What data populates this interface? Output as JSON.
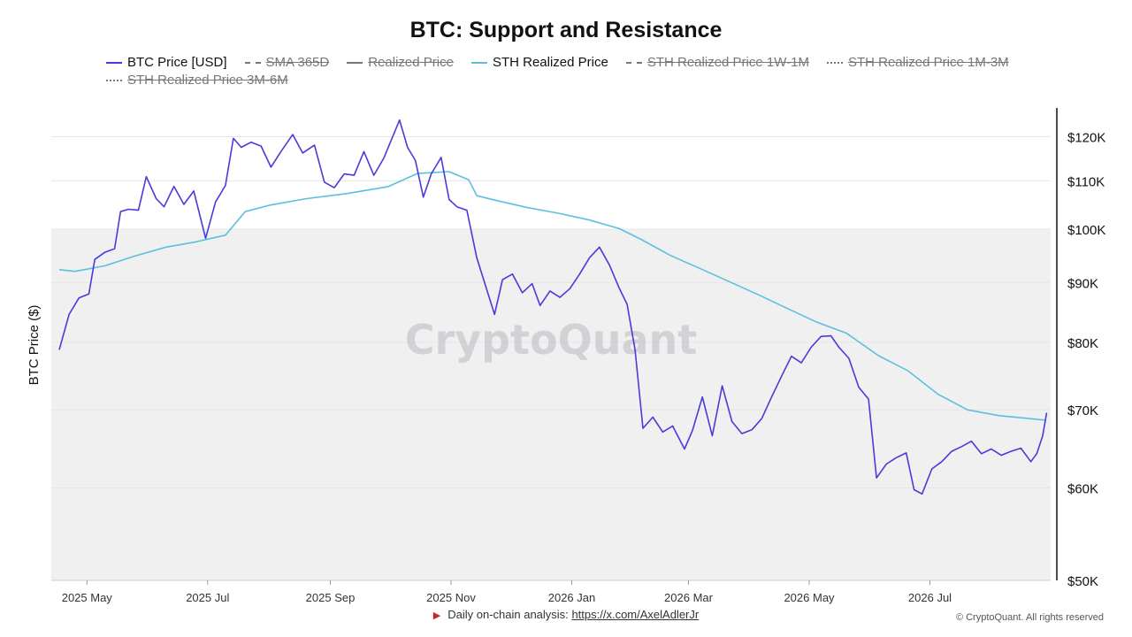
{
  "chart_data": {
    "type": "line",
    "title": "BTC: Support and Resistance",
    "ylabel": "BTC Price ($)",
    "xlabel": "",
    "y_scale": "log",
    "ylim": [
      50000,
      127000
    ],
    "xlim": [
      "2025-04-13",
      "2026-08-31"
    ],
    "grid": true,
    "legend_position": "top",
    "shaded_band": {
      "from": 50000,
      "to": 100000,
      "color": "#f0f0f0"
    },
    "watermark": "CryptoQuant",
    "y_ticks": [
      {
        "value": 50000,
        "label": "$50K"
      },
      {
        "value": 60000,
        "label": "$60K"
      },
      {
        "value": 70000,
        "label": "$70K"
      },
      {
        "value": 80000,
        "label": "$80K"
      },
      {
        "value": 90000,
        "label": "$90K"
      },
      {
        "value": 100000,
        "label": "$100K"
      },
      {
        "value": 110000,
        "label": "$110K"
      },
      {
        "value": 120000,
        "label": "$120K"
      }
    ],
    "x_ticks": [
      {
        "date": "2025-05-01",
        "label": "2025 May"
      },
      {
        "date": "2025-07-01",
        "label": "2025 Jul"
      },
      {
        "date": "2025-09-01",
        "label": "2025 Sep"
      },
      {
        "date": "2025-11-01",
        "label": "2025 Nov"
      },
      {
        "date": "2026-01-01",
        "label": "2026 Jan"
      },
      {
        "date": "2026-03-01",
        "label": "2026 Mar"
      },
      {
        "date": "2026-05-01",
        "label": "2026 May"
      },
      {
        "date": "2026-07-01",
        "label": "2026 Jul"
      }
    ],
    "series": [
      {
        "name": "BTC Price [USD]",
        "color": "#4a3ad9",
        "style": "solid",
        "visible": true,
        "points": [
          [
            "2025-04-17",
            78800
          ],
          [
            "2025-04-22",
            84500
          ],
          [
            "2025-04-27",
            87300
          ],
          [
            "2025-05-02",
            88000
          ],
          [
            "2025-05-05",
            94200
          ],
          [
            "2025-05-10",
            95500
          ],
          [
            "2025-05-15",
            96200
          ],
          [
            "2025-05-18",
            103500
          ],
          [
            "2025-05-22",
            104000
          ],
          [
            "2025-05-27",
            103800
          ],
          [
            "2025-05-31",
            110900
          ],
          [
            "2025-06-05",
            106200
          ],
          [
            "2025-06-09",
            104500
          ],
          [
            "2025-06-14",
            108800
          ],
          [
            "2025-06-19",
            105000
          ],
          [
            "2025-06-24",
            107800
          ],
          [
            "2025-06-30",
            98200
          ],
          [
            "2025-07-05",
            105500
          ],
          [
            "2025-07-10",
            109000
          ],
          [
            "2025-07-14",
            119600
          ],
          [
            "2025-07-18",
            117500
          ],
          [
            "2025-07-23",
            118700
          ],
          [
            "2025-07-28",
            117800
          ],
          [
            "2025-08-02",
            113000
          ],
          [
            "2025-08-07",
            116500
          ],
          [
            "2025-08-13",
            120500
          ],
          [
            "2025-08-18",
            116200
          ],
          [
            "2025-08-24",
            118000
          ],
          [
            "2025-08-29",
            109700
          ],
          [
            "2025-09-03",
            108500
          ],
          [
            "2025-09-08",
            111500
          ],
          [
            "2025-09-13",
            111200
          ],
          [
            "2025-09-18",
            116500
          ],
          [
            "2025-09-23",
            111200
          ],
          [
            "2025-09-28",
            115000
          ],
          [
            "2025-10-06",
            124000
          ],
          [
            "2025-10-10",
            117500
          ],
          [
            "2025-10-14",
            114500
          ],
          [
            "2025-10-18",
            106500
          ],
          [
            "2025-10-22",
            111500
          ],
          [
            "2025-10-27",
            115200
          ],
          [
            "2025-10-31",
            106000
          ],
          [
            "2025-11-04",
            104500
          ],
          [
            "2025-11-09",
            103800
          ],
          [
            "2025-11-14",
            94500
          ],
          [
            "2025-11-19",
            88800
          ],
          [
            "2025-11-23",
            84500
          ],
          [
            "2025-11-27",
            90500
          ],
          [
            "2025-12-02",
            91500
          ],
          [
            "2025-12-07",
            88200
          ],
          [
            "2025-12-12",
            89800
          ],
          [
            "2025-12-16",
            86000
          ],
          [
            "2025-12-21",
            88500
          ],
          [
            "2025-12-26",
            87400
          ],
          [
            "2025-12-31",
            88900
          ],
          [
            "2026-01-05",
            91500
          ],
          [
            "2026-01-10",
            94500
          ],
          [
            "2026-01-15",
            96500
          ],
          [
            "2026-01-20",
            93200
          ],
          [
            "2026-01-25",
            89000
          ],
          [
            "2026-01-29",
            86200
          ],
          [
            "2026-02-02",
            78800
          ],
          [
            "2026-02-06",
            67500
          ],
          [
            "2026-02-11",
            69000
          ],
          [
            "2026-02-16",
            67000
          ],
          [
            "2026-02-21",
            67800
          ],
          [
            "2026-02-27",
            64800
          ],
          [
            "2026-03-03",
            67200
          ],
          [
            "2026-03-08",
            71800
          ],
          [
            "2026-03-13",
            66500
          ],
          [
            "2026-03-18",
            73400
          ],
          [
            "2026-03-23",
            68400
          ],
          [
            "2026-03-28",
            66800
          ],
          [
            "2026-04-02",
            67300
          ],
          [
            "2026-04-07",
            68800
          ],
          [
            "2026-04-12",
            71800
          ],
          [
            "2026-04-17",
            74800
          ],
          [
            "2026-04-22",
            77800
          ],
          [
            "2026-04-27",
            76800
          ],
          [
            "2026-05-02",
            79200
          ],
          [
            "2026-05-07",
            80900
          ],
          [
            "2026-05-12",
            81000
          ],
          [
            "2026-05-16",
            79200
          ],
          [
            "2026-05-21",
            77500
          ],
          [
            "2026-05-26",
            73200
          ],
          [
            "2026-05-31",
            71500
          ],
          [
            "2026-06-04",
            61200
          ],
          [
            "2026-06-09",
            62900
          ],
          [
            "2026-06-14",
            63700
          ],
          [
            "2026-06-19",
            64300
          ],
          [
            "2026-06-23",
            59800
          ],
          [
            "2026-06-27",
            59300
          ],
          [
            "2026-07-02",
            62300
          ],
          [
            "2026-07-07",
            63200
          ],
          [
            "2026-07-12",
            64500
          ],
          [
            "2026-07-17",
            65100
          ],
          [
            "2026-07-22",
            65800
          ],
          [
            "2026-07-27",
            64200
          ],
          [
            "2026-08-01",
            64800
          ],
          [
            "2026-08-06",
            64000
          ],
          [
            "2026-08-11",
            64500
          ],
          [
            "2026-08-16",
            64900
          ],
          [
            "2026-08-21",
            63200
          ],
          [
            "2026-08-24",
            64200
          ],
          [
            "2026-08-27",
            66500
          ],
          [
            "2026-08-29",
            69600
          ]
        ]
      },
      {
        "name": "SMA 365D",
        "color": "#777777",
        "style": "dashed",
        "visible": false,
        "points": []
      },
      {
        "name": "Realized Price",
        "color": "#777777",
        "style": "solid",
        "visible": false,
        "points": []
      },
      {
        "name": "STH Realized Price",
        "color": "#5bc0de",
        "style": "solid",
        "visible": true,
        "points": [
          [
            "2025-04-17",
            92300
          ],
          [
            "2025-04-25",
            92000
          ],
          [
            "2025-05-10",
            93000
          ],
          [
            "2025-05-25",
            94800
          ],
          [
            "2025-06-10",
            96500
          ],
          [
            "2025-06-25",
            97500
          ],
          [
            "2025-07-10",
            98800
          ],
          [
            "2025-07-20",
            103500
          ],
          [
            "2025-08-01",
            104800
          ],
          [
            "2025-08-20",
            106200
          ],
          [
            "2025-09-10",
            107300
          ],
          [
            "2025-09-30",
            108700
          ],
          [
            "2025-10-15",
            111600
          ],
          [
            "2025-10-31",
            112000
          ],
          [
            "2025-11-10",
            110200
          ],
          [
            "2025-11-14",
            106800
          ],
          [
            "2025-11-25",
            105700
          ],
          [
            "2025-12-10",
            104300
          ],
          [
            "2025-12-25",
            103200
          ],
          [
            "2026-01-10",
            101800
          ],
          [
            "2026-01-25",
            100100
          ],
          [
            "2026-02-05",
            98000
          ],
          [
            "2026-02-20",
            94900
          ],
          [
            "2026-03-05",
            92800
          ],
          [
            "2026-03-20",
            90400
          ],
          [
            "2026-04-05",
            87900
          ],
          [
            "2026-04-20",
            85500
          ],
          [
            "2026-05-05",
            83200
          ],
          [
            "2026-05-20",
            81400
          ],
          [
            "2026-06-05",
            77900
          ],
          [
            "2026-06-20",
            75600
          ],
          [
            "2026-07-05",
            72200
          ],
          [
            "2026-07-20",
            70000
          ],
          [
            "2026-08-05",
            69200
          ],
          [
            "2026-08-28",
            68600
          ]
        ]
      },
      {
        "name": "STH Realized Price 1W-1M",
        "color": "#777777",
        "style": "dashed",
        "visible": false,
        "points": []
      },
      {
        "name": "STH Realized Price 1M-3M",
        "color": "#777777",
        "style": "dotted",
        "visible": false,
        "points": []
      },
      {
        "name": "STH Realized Price 3M-6M",
        "color": "#777777",
        "style": "dotted",
        "visible": false,
        "points": []
      }
    ]
  },
  "footer": {
    "text": "Daily on-chain analysis:",
    "link_text": "https://x.com/AxelAdlerJr",
    "copyright": "© CryptoQuant. All rights reserved"
  }
}
